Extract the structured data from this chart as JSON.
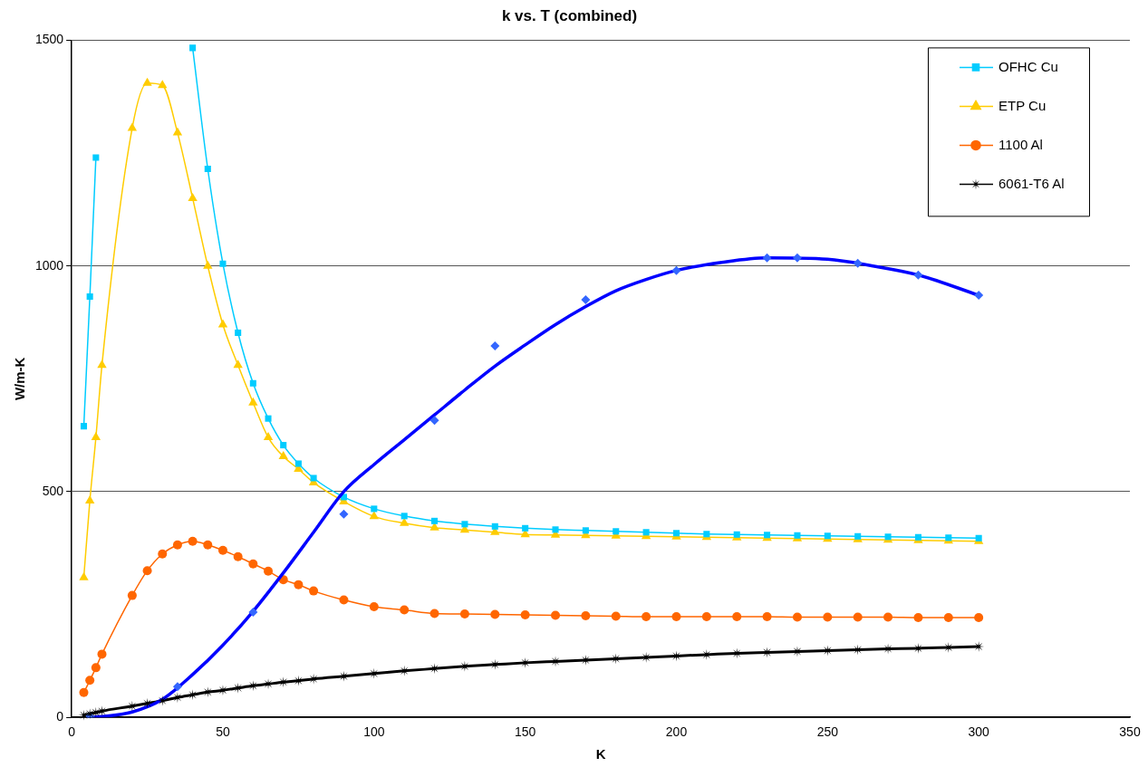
{
  "chart_data": {
    "type": "line",
    "title": "k vs. T (combined)",
    "xlabel": "K",
    "ylabel": "W/m-K",
    "xlim": [
      0,
      350
    ],
    "xticks": [
      0,
      50,
      100,
      150,
      200,
      250,
      300,
      350
    ],
    "ylim": [
      0,
      1500
    ],
    "yticks": [
      0,
      500,
      1000,
      1500
    ],
    "grid": "y",
    "legend": "top right",
    "series": [
      {
        "type": "scatter",
        "marker": "diamond",
        "color": "#3366ff",
        "x": [
          6,
          35,
          60,
          90,
          120,
          140,
          170,
          200,
          230,
          240,
          260,
          280,
          300
        ],
        "values": [
          2,
          68,
          233,
          450,
          658,
          823,
          925,
          990,
          1018,
          1018,
          1006,
          980,
          935
        ]
      },
      {
        "marker": "none",
        "color": "#0000ff",
        "x": [
          5,
          10,
          20,
          30,
          40,
          50,
          60,
          70,
          80,
          90,
          100,
          110,
          120,
          130,
          140,
          150,
          160,
          170,
          180,
          190,
          200,
          215,
          230,
          250,
          265,
          280,
          300
        ],
        "values": [
          0,
          2,
          12,
          40,
          95,
          160,
          235,
          320,
          410,
          500,
          560,
          615,
          670,
          725,
          778,
          825,
          870,
          910,
          945,
          970,
          990,
          1008,
          1018,
          1015,
          1000,
          980,
          935
        ]
      },
      {
        "name": "OFHC Cu",
        "marker": "square",
        "color": "#00ccff",
        "x": [
          4,
          6,
          8,
          10,
          40,
          45,
          50,
          55,
          60,
          65,
          70,
          75,
          80,
          90,
          100,
          110,
          120,
          130,
          140,
          150,
          160,
          170,
          180,
          190,
          200,
          210,
          220,
          230,
          240,
          250,
          260,
          270,
          280,
          290,
          300
        ],
        "values": [
          645,
          932,
          1240,
          null,
          1483,
          1215,
          1005,
          852,
          740,
          662,
          603,
          562,
          530,
          488,
          462,
          446,
          435,
          428,
          423,
          419,
          416,
          414,
          412,
          410,
          408,
          406,
          405,
          404,
          403,
          402,
          401,
          400,
          399,
          398,
          397
        ]
      },
      {
        "name": "ETP Cu",
        "marker": "triangle",
        "color": "#ffcc00",
        "x": [
          4,
          6,
          8,
          10,
          20,
          25,
          30,
          35,
          40,
          45,
          50,
          55,
          60,
          65,
          70,
          75,
          80,
          90,
          100,
          110,
          120,
          130,
          140,
          150,
          160,
          170,
          180,
          190,
          200,
          210,
          220,
          230,
          240,
          250,
          260,
          270,
          280,
          290,
          300
        ],
        "values": [
          310,
          480,
          620,
          780,
          1305,
          1405,
          1400,
          1295,
          1150,
          1000,
          870,
          780,
          697,
          620,
          578,
          550,
          520,
          478,
          445,
          430,
          420,
          415,
          410,
          405,
          404,
          403,
          402,
          401,
          400,
          399,
          398,
          397,
          396,
          395,
          394,
          393,
          392,
          391,
          390
        ]
      },
      {
        "name": "1100 Al",
        "marker": "circle",
        "color": "#ff6600",
        "x": [
          4,
          6,
          8,
          10,
          20,
          25,
          30,
          35,
          40,
          45,
          50,
          55,
          60,
          65,
          70,
          75,
          80,
          90,
          100,
          110,
          120,
          130,
          140,
          150,
          160,
          170,
          180,
          190,
          200,
          210,
          220,
          230,
          240,
          250,
          260,
          270,
          280,
          290,
          300
        ],
        "values": [
          55,
          82,
          110,
          140,
          270,
          325,
          362,
          382,
          390,
          382,
          370,
          356,
          340,
          324,
          305,
          294,
          280,
          260,
          245,
          238,
          230,
          229,
          228,
          227,
          226,
          225,
          224,
          223,
          223,
          223,
          223,
          223,
          222,
          222,
          222,
          222,
          221,
          221,
          221
        ]
      },
      {
        "name": "6061-T6 Al",
        "marker": "star",
        "color": "#000000",
        "x": [
          4,
          6,
          8,
          10,
          20,
          25,
          30,
          35,
          40,
          45,
          50,
          55,
          60,
          65,
          70,
          75,
          80,
          90,
          100,
          110,
          120,
          130,
          140,
          150,
          160,
          170,
          180,
          190,
          200,
          210,
          220,
          230,
          240,
          250,
          260,
          270,
          280,
          290,
          300
        ],
        "values": [
          5,
          8,
          11,
          14,
          25,
          31,
          37,
          44,
          50,
          56,
          60,
          65,
          70,
          74,
          78,
          81,
          85,
          91,
          97,
          103,
          108,
          113,
          117,
          121,
          124,
          127,
          130,
          133,
          136,
          139,
          142,
          144,
          146,
          148,
          150,
          152,
          153,
          155,
          157
        ]
      }
    ]
  }
}
